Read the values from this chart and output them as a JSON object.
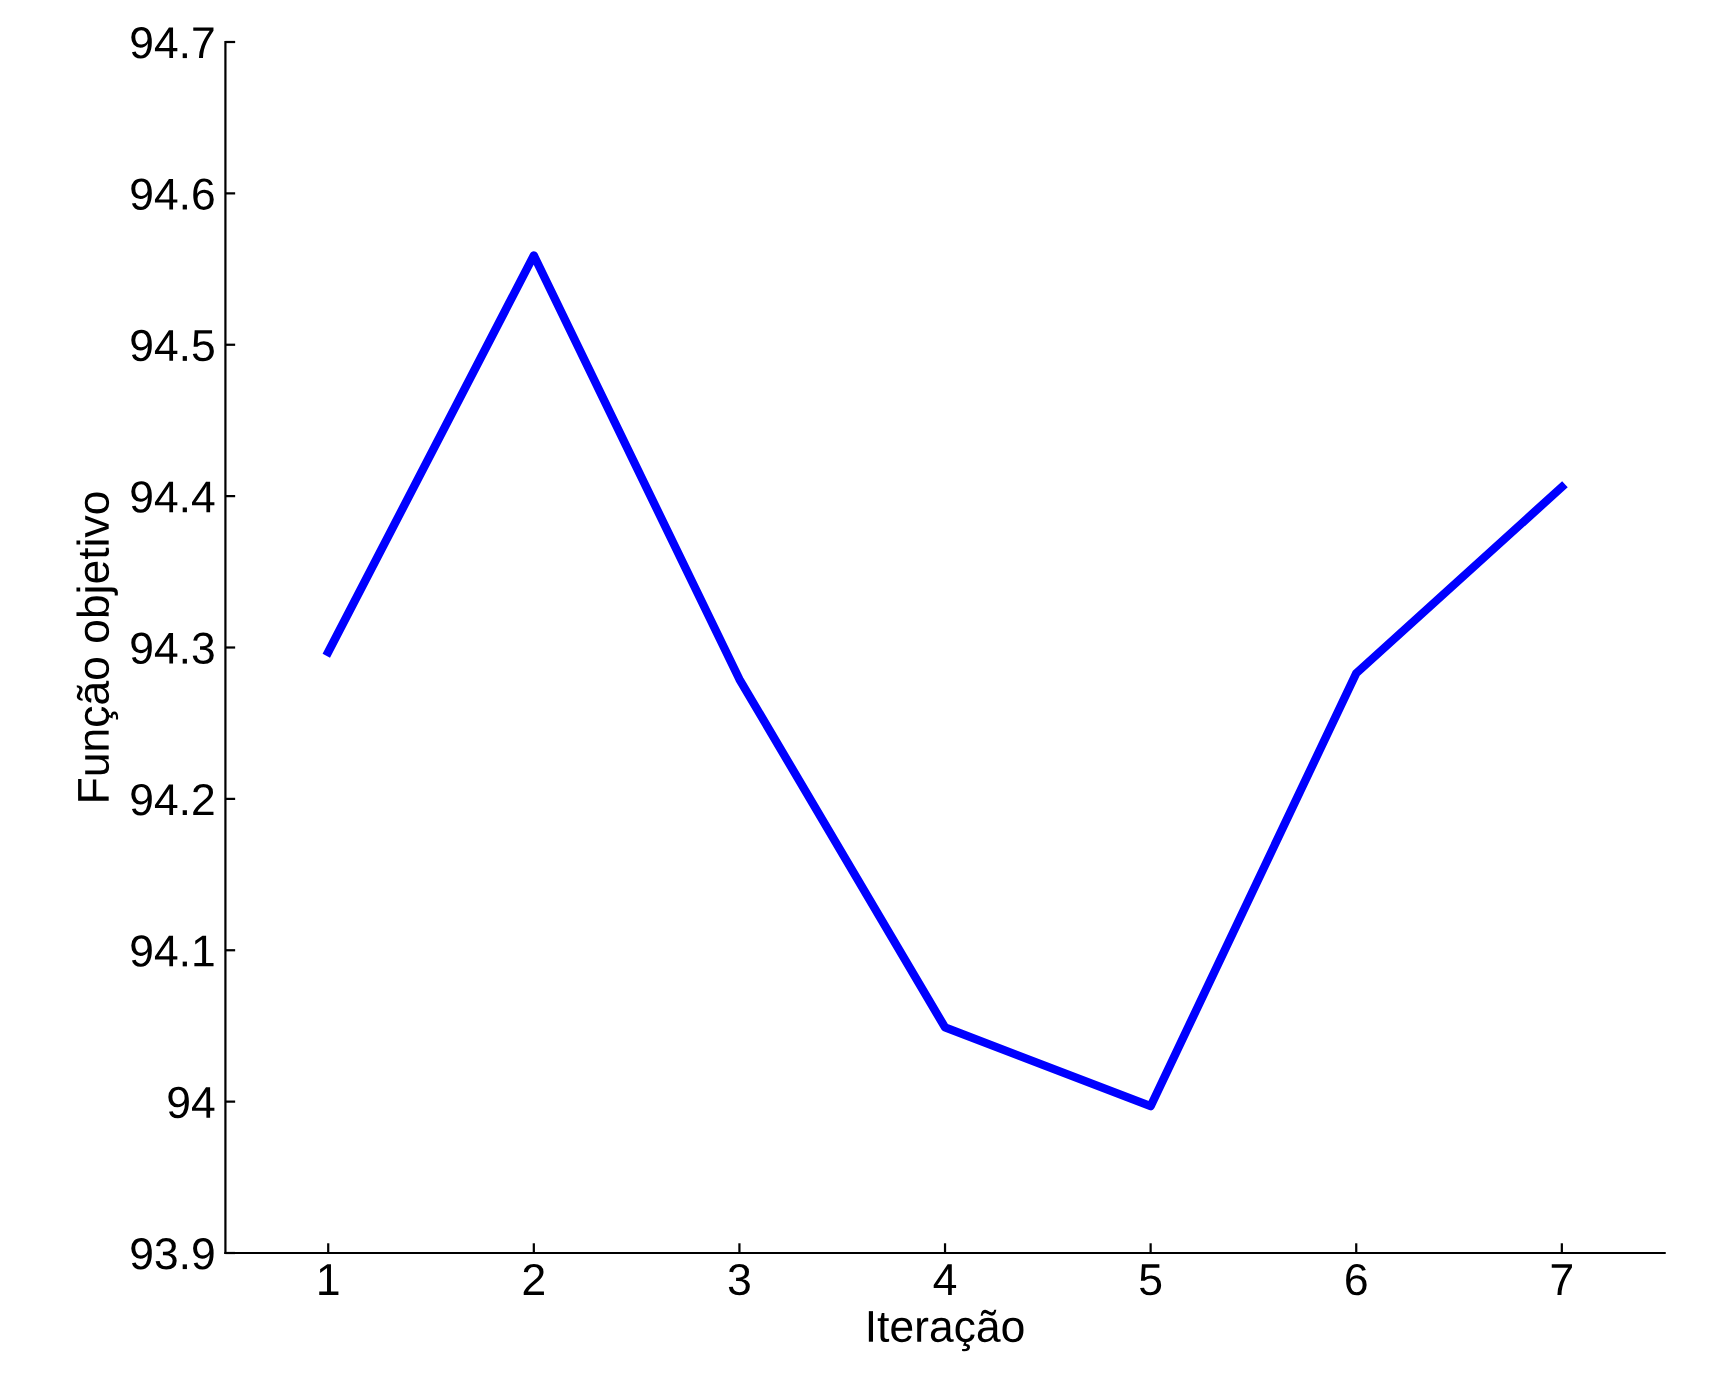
{
  "chart_data": {
    "type": "line",
    "xlabel": "Iteração",
    "ylabel": "Função objetivo",
    "x": [
      1,
      2,
      3,
      4,
      5,
      6,
      7
    ],
    "series": [
      {
        "color": "#0000ff",
        "values": [
          94.297,
          94.559,
          94.279,
          94.049,
          93.997,
          94.283,
          94.406
        ]
      }
    ],
    "xlim": [
      0.5,
      7.5
    ],
    "xticks": [
      1,
      2,
      3,
      4,
      5,
      6,
      7
    ],
    "ylim": [
      93.9,
      94.7
    ],
    "yticks": [
      93.9,
      94,
      94.1,
      94.2,
      94.3,
      94.4,
      94.5,
      94.6,
      94.7
    ],
    "grid": false,
    "legend": false,
    "marker": "none",
    "line_style": "solid"
  }
}
